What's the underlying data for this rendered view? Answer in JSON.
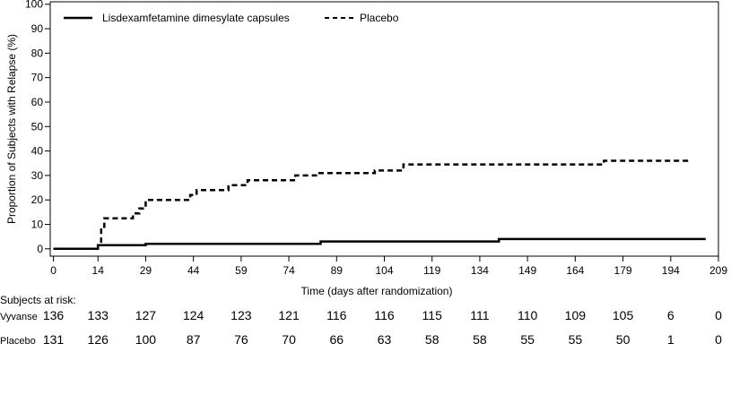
{
  "chart_data": {
    "type": "line",
    "xlabel": "Time (days after randomization)",
    "ylabel": "Proportion of Subjects with Relapse (%)",
    "xlim": [
      -1,
      209
    ],
    "ylim": [
      -3,
      101
    ],
    "x_ticks": [
      0,
      14,
      29,
      44,
      59,
      74,
      89,
      104,
      119,
      134,
      149,
      164,
      179,
      194,
      209
    ],
    "y_ticks": [
      0,
      10,
      20,
      30,
      40,
      50,
      60,
      70,
      80,
      90,
      100
    ],
    "grid": false,
    "legend_position": "top-left",
    "series": [
      {
        "name": "Lisdexamfetamine dimesylate capsules",
        "line_style": "solid",
        "color": "#000000",
        "step": true,
        "points": [
          [
            0,
            0
          ],
          [
            14,
            0
          ],
          [
            14,
            1.5
          ],
          [
            29,
            1.5
          ],
          [
            29,
            2
          ],
          [
            84,
            2
          ],
          [
            84,
            3
          ],
          [
            140,
            3
          ],
          [
            140,
            4
          ],
          [
            205,
            4
          ]
        ]
      },
      {
        "name": "Placebo",
        "line_style": "dashed",
        "color": "#000000",
        "step": true,
        "points": [
          [
            0,
            0
          ],
          [
            14,
            0
          ],
          [
            14,
            1.5
          ],
          [
            15,
            1.5
          ],
          [
            15,
            9
          ],
          [
            16,
            9
          ],
          [
            16,
            12.5
          ],
          [
            25,
            12.5
          ],
          [
            25,
            14.5
          ],
          [
            27,
            14.5
          ],
          [
            27,
            16.5
          ],
          [
            29,
            16.5
          ],
          [
            29,
            20
          ],
          [
            43,
            20
          ],
          [
            43,
            22
          ],
          [
            45,
            22
          ],
          [
            45,
            24
          ],
          [
            55,
            24
          ],
          [
            55,
            26
          ],
          [
            61,
            26
          ],
          [
            61,
            28
          ],
          [
            76,
            28
          ],
          [
            76,
            30
          ],
          [
            83,
            30
          ],
          [
            83,
            31
          ],
          [
            101,
            31
          ],
          [
            101,
            32
          ],
          [
            110,
            32
          ],
          [
            110,
            34.5
          ],
          [
            173,
            34.5
          ],
          [
            173,
            36
          ],
          [
            200,
            36
          ]
        ]
      }
    ],
    "risk_table": {
      "title": "Subjects at risk:",
      "rows": [
        {
          "label": "Vyvanse",
          "values": [
            "136",
            "133",
            "127",
            "124",
            "123",
            "121",
            "116",
            "116",
            "115",
            "111",
            "110",
            "109",
            "105",
            "6",
            "0"
          ]
        },
        {
          "label": "Placebo",
          "values": [
            "131",
            "126",
            "100",
            "87",
            "76",
            "70",
            "66",
            "63",
            "58",
            "58",
            "55",
            "55",
            "50",
            "1",
            "0"
          ]
        }
      ]
    }
  }
}
